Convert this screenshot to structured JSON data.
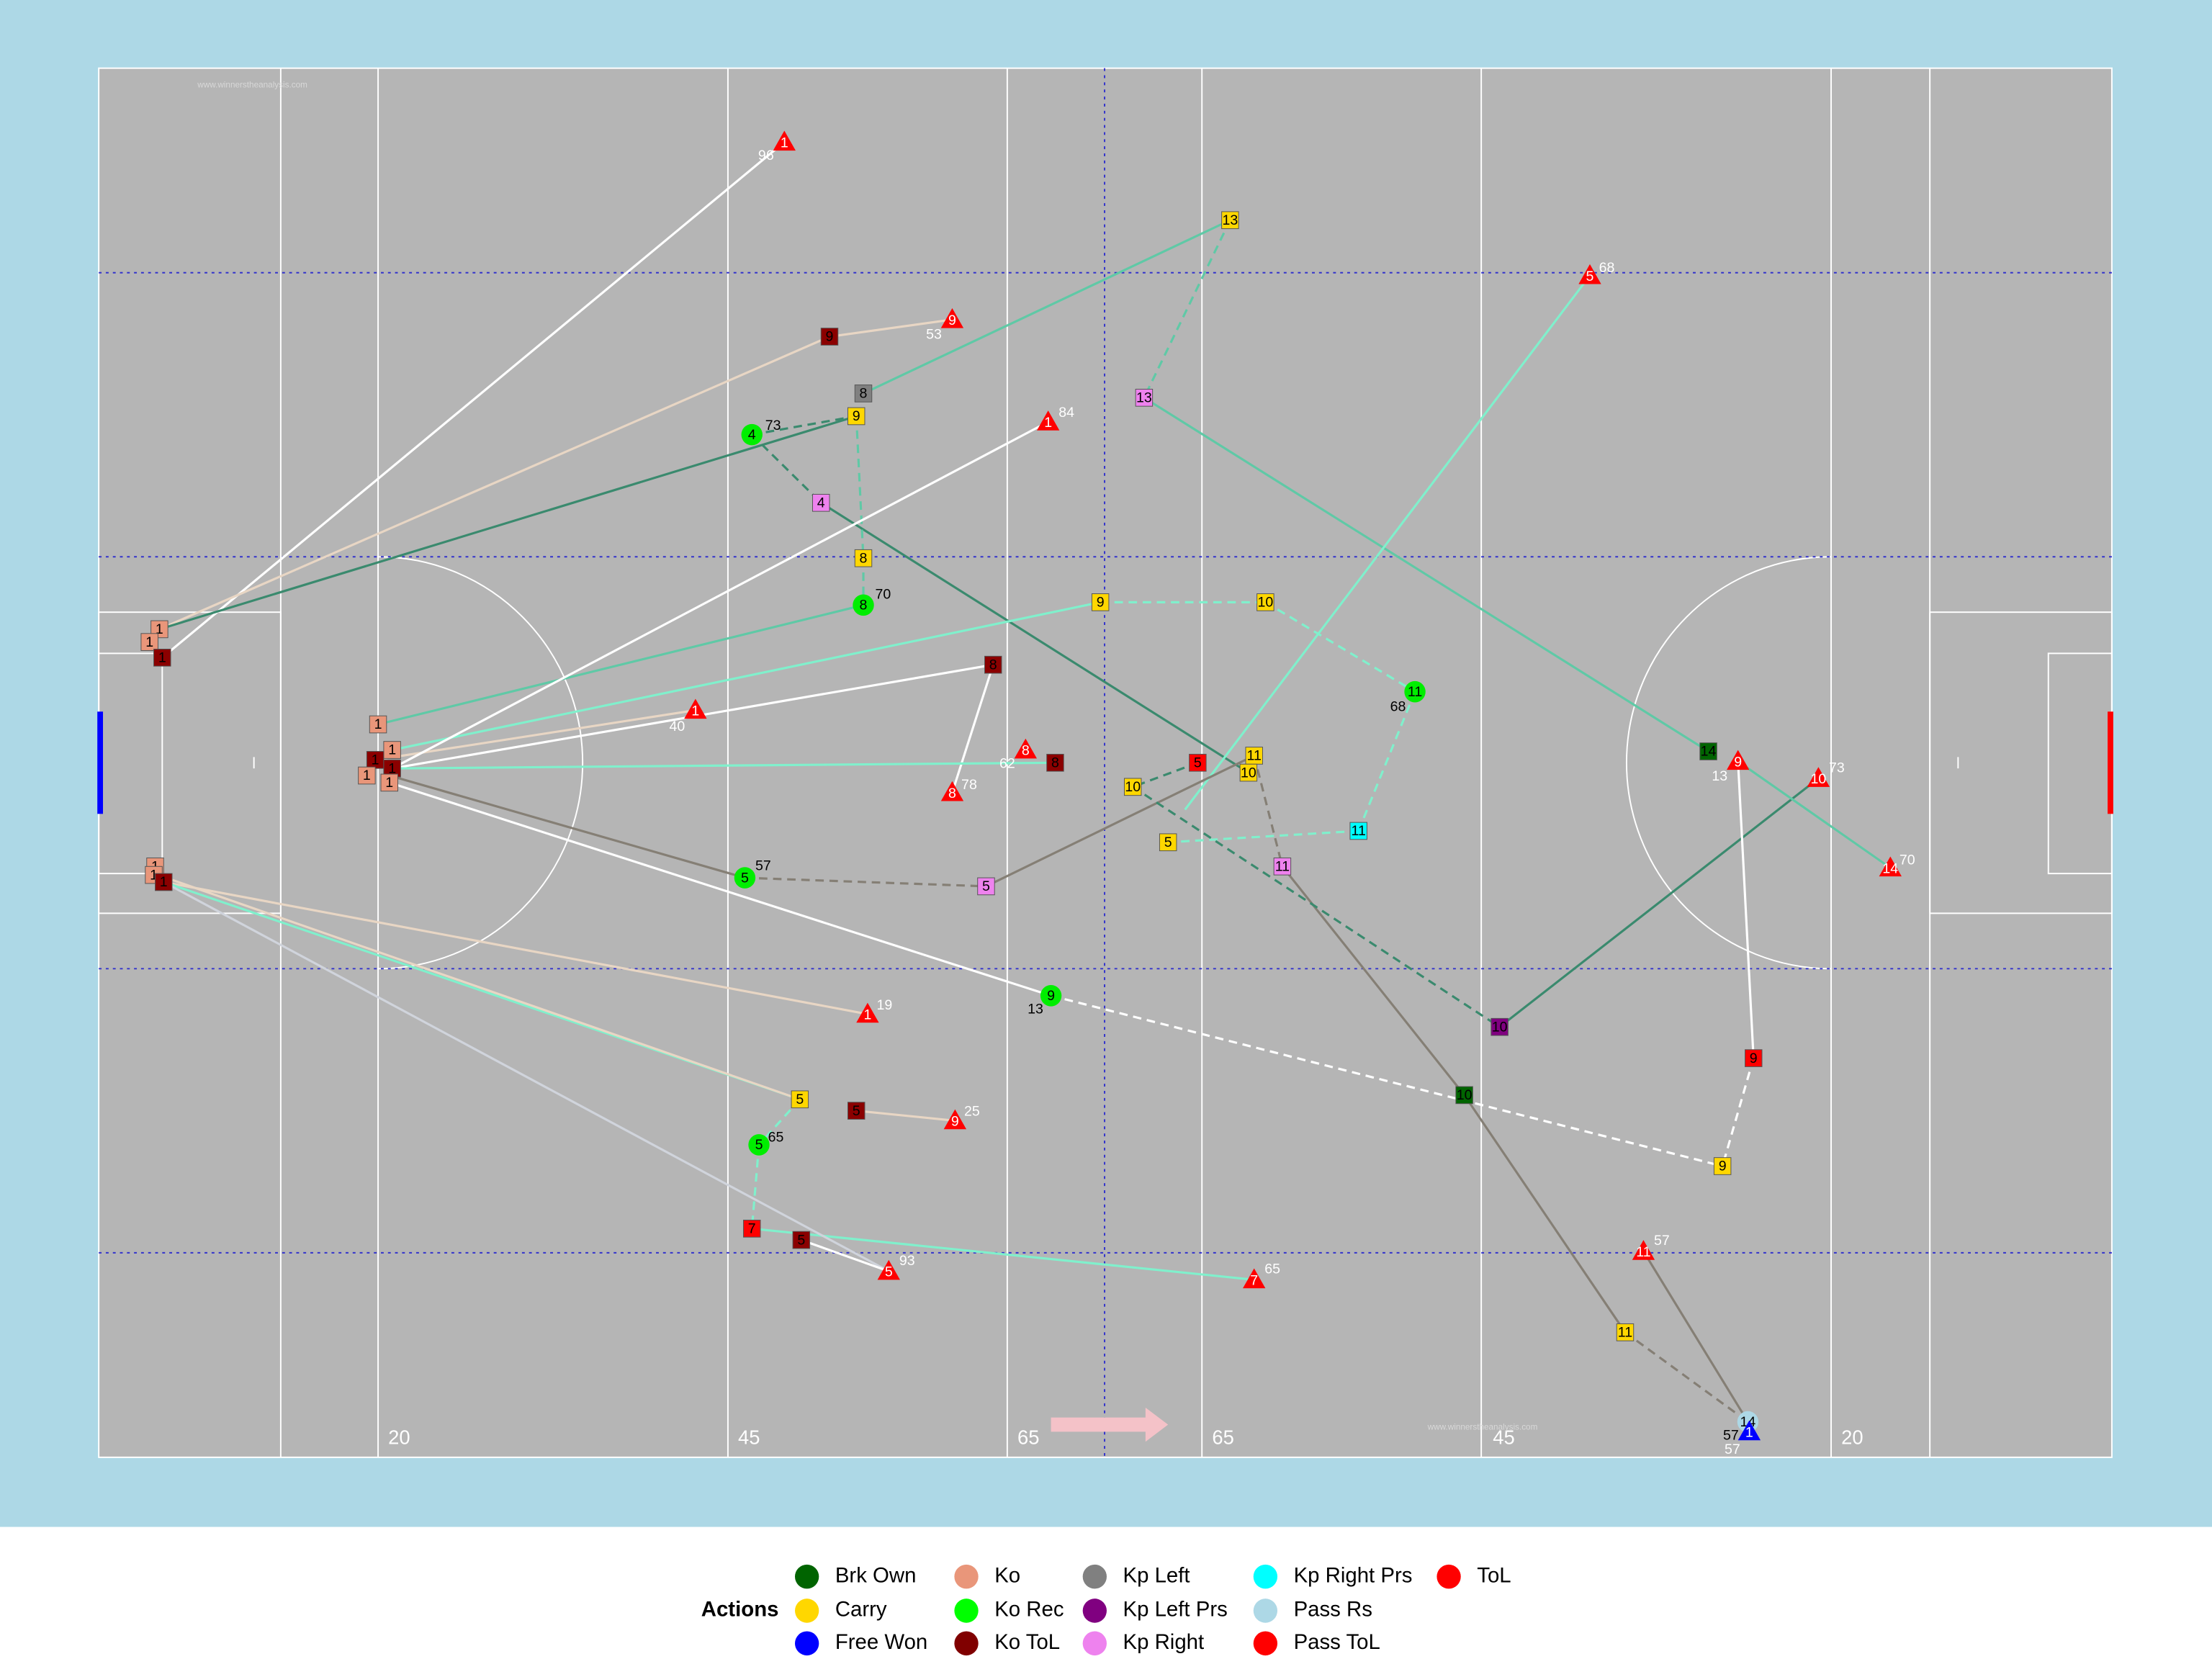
{
  "pitch": {
    "yard_labels": [
      "20",
      "45",
      "65",
      "65",
      "45",
      "20"
    ],
    "watermarks": [
      "www.winnerstheanalysis.com",
      "www.winnerstheanalysis.com"
    ]
  },
  "markers": [
    {
      "label": "1",
      "note": "96"
    },
    {
      "label": "9"
    },
    {
      "label": "9",
      "note": "53"
    },
    {
      "label": "13"
    },
    {
      "label": "8"
    },
    {
      "label": "9"
    },
    {
      "label": "4",
      "note": "73"
    },
    {
      "label": "4"
    },
    {
      "label": "13"
    },
    {
      "label": "5",
      "note": "68"
    },
    {
      "label": "1",
      "note": "84"
    },
    {
      "label": "8"
    },
    {
      "label": "8",
      "note": "70"
    },
    {
      "label": "9"
    },
    {
      "label": "10"
    },
    {
      "label": "11",
      "note": "68"
    },
    {
      "label": "1"
    },
    {
      "label": "1"
    },
    {
      "label": "1"
    },
    {
      "label": "1"
    },
    {
      "label": "1"
    },
    {
      "label": "1"
    },
    {
      "label": "1"
    },
    {
      "label": "1"
    },
    {
      "label": "1"
    },
    {
      "label": "1",
      "note": "40"
    },
    {
      "label": "8"
    },
    {
      "label": "8",
      "note": "78"
    },
    {
      "label": "8",
      "note": "62"
    },
    {
      "label": "8"
    },
    {
      "label": "5"
    },
    {
      "label": "11"
    },
    {
      "label": "10"
    },
    {
      "label": "10"
    },
    {
      "label": "5"
    },
    {
      "label": "11"
    },
    {
      "label": "11"
    },
    {
      "label": "5",
      "note": "57"
    },
    {
      "label": "5"
    },
    {
      "label": "14"
    },
    {
      "label": "9",
      "note": "13"
    },
    {
      "label": "10",
      "note": "73"
    },
    {
      "label": "14",
      "note": "70"
    },
    {
      "label": "1"
    },
    {
      "label": "1"
    },
    {
      "label": "1"
    },
    {
      "label": "9",
      "note": "13"
    },
    {
      "label": "1",
      "note": "19"
    },
    {
      "label": "10"
    },
    {
      "label": "9"
    },
    {
      "label": "10"
    },
    {
      "label": "5"
    },
    {
      "label": "5"
    },
    {
      "label": "9",
      "note": "25"
    },
    {
      "label": "5",
      "note": "65"
    },
    {
      "label": "9"
    },
    {
      "label": "7"
    },
    {
      "label": "5"
    },
    {
      "label": "5",
      "note": "93"
    },
    {
      "label": "7",
      "note": "65"
    },
    {
      "label": "11",
      "note": "57"
    },
    {
      "label": "11"
    },
    {
      "label": "14",
      "note": "57"
    },
    {
      "label": "1",
      "note": "57"
    }
  ],
  "legend": {
    "title": "Actions",
    "items": [
      "Brk Own",
      "Carry",
      "Free Won",
      "Ko",
      "Ko Rec",
      "Ko ToL",
      "Kp Left",
      "Kp Left Prs",
      "Kp Right",
      "Kp Right Prs",
      "Pass Rs",
      "Pass ToL",
      "ToL"
    ]
  }
}
